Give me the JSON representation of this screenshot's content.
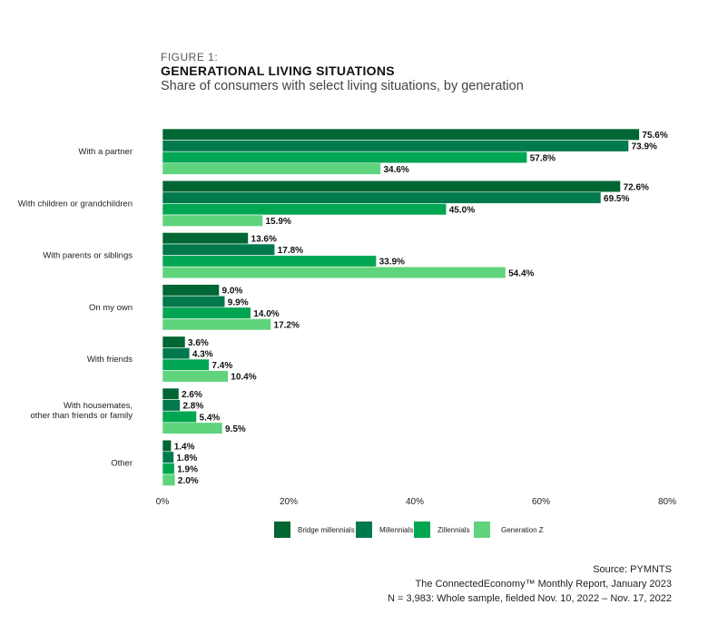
{
  "figure_label": "FIGURE 1:",
  "chart_data": {
    "type": "bar",
    "orientation": "horizontal",
    "title": "GENERATIONAL LIVING SITUATIONS",
    "subtitle": "Share of consumers with select living situations, by generation",
    "categories": [
      "With a partner",
      "With children or grandchildren",
      "With parents or siblings",
      "On my own",
      "With friends",
      "With housemates, other than friends or family",
      "Other"
    ],
    "series": [
      {
        "name": "Bridge millennials",
        "color": "#006633",
        "values": [
          75.6,
          72.6,
          13.6,
          9.0,
          3.6,
          2.6,
          1.4
        ]
      },
      {
        "name": "Millennials",
        "color": "#007a4d",
        "values": [
          73.9,
          69.5,
          17.8,
          9.9,
          4.3,
          2.8,
          1.8
        ]
      },
      {
        "name": "Zillennials",
        "color": "#00a651",
        "values": [
          57.8,
          45.0,
          33.9,
          14.0,
          7.4,
          5.4,
          1.9
        ]
      },
      {
        "name": "Generation Z",
        "color": "#5fd47d",
        "values": [
          34.6,
          15.9,
          54.4,
          17.2,
          10.4,
          9.5,
          2.0
        ]
      }
    ],
    "xlim": [
      0,
      80
    ],
    "xticks": [
      "0%",
      "20%",
      "40%",
      "60%",
      "80%"
    ],
    "grid": false,
    "legend_placement": "bottom"
  },
  "source": {
    "line1": "Source: PYMNTS",
    "line2": "The ConnectedEconomy™ Monthly Report, January 2023",
    "line3": "N = 3,983: Whole sample, fielded Nov. 10, 2022 – Nov. 17, 2022"
  }
}
